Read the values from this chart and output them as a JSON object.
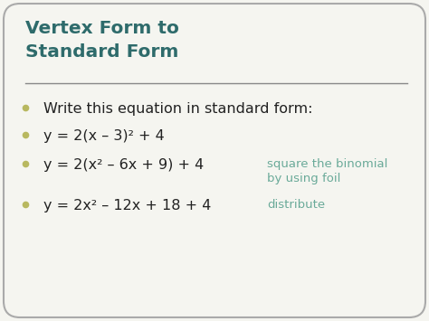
{
  "title_line1": "Vertex Form to",
  "title_line2": "Standard Form",
  "title_color": "#2e6b6b",
  "background_color": "#f5f5f0",
  "border_color": "#aaaaaa",
  "bullet_color": "#b8b860",
  "bullet_points": [
    {
      "main": "Write this equation in standard form:",
      "note": "",
      "note2": ""
    },
    {
      "main": "y = 2(x – 3)² + 4",
      "note": "",
      "note2": ""
    },
    {
      "main": "y = 2(x² – 6x + 9) + 4",
      "note": "square the binomial",
      "note2": "by using foil"
    },
    {
      "main": "y = 2x² – 12x + 18 + 4",
      "note": "distribute",
      "note2": ""
    }
  ],
  "line_color": "#888888",
  "text_color": "#222222",
  "note_color": "#6aaa99"
}
